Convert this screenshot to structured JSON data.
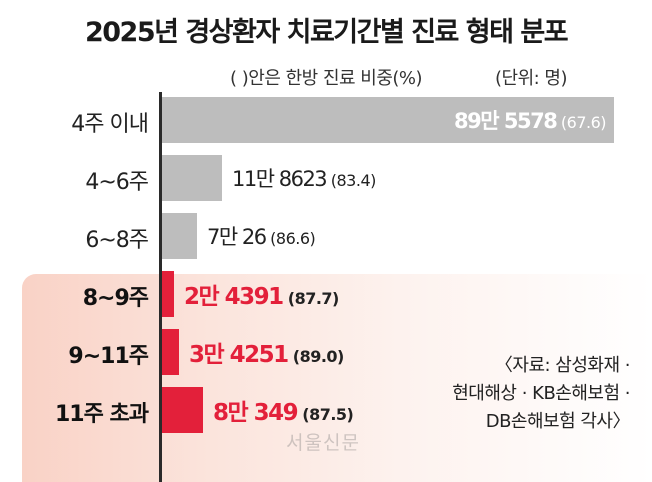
{
  "title": "2025년 경상환자 치료기간별 진료 형태 분포",
  "note_paren": "(  )안은 한방 진료 비중(%)",
  "note_unit": "(단위: 명)",
  "source_lines": [
    "〈자료: 삼성화재 ·",
    "현대해상 · KB손해보험 ·",
    "DB손해보험 각사〉"
  ],
  "watermark": "서울신문",
  "colors": {
    "gray_bar": "#bdbdbd",
    "red_bar": "#e3203a",
    "highlight_bg": "#f9d2c6"
  },
  "chart_data": {
    "type": "bar",
    "orientation": "horizontal",
    "title": "2025년 경상환자 치료기간별 진료 형태 분포",
    "categories": [
      "4주 이내",
      "4~6주",
      "6~8주",
      "8~9주",
      "9~11주",
      "11주 초과"
    ],
    "values": [
      895578,
      118623,
      70026,
      24391,
      34251,
      80349
    ],
    "value_labels": [
      "89만 5578",
      "11만 8623",
      "7만 26",
      "2만 4391",
      "3만 4251",
      "8만 349"
    ],
    "secondary_values": [
      67.6,
      83.4,
      86.6,
      87.7,
      89.0,
      87.5
    ],
    "secondary_labels": [
      "(67.6)",
      "(83.4)",
      "(86.6)",
      "(87.7)",
      "(89.0)",
      "(87.5)"
    ],
    "highlighted": [
      false,
      false,
      false,
      true,
      true,
      true
    ],
    "unit": "명",
    "xlim": [
      0,
      895578
    ]
  }
}
